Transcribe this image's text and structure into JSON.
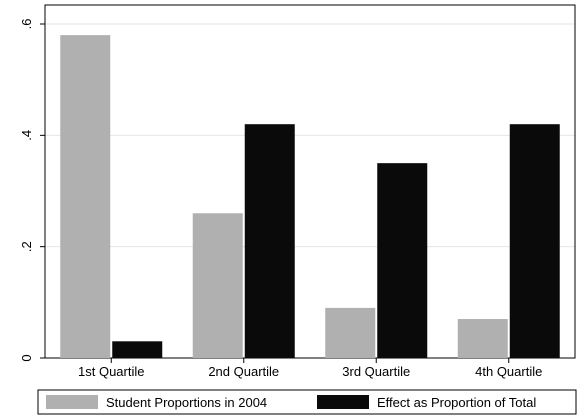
{
  "chart_data": {
    "type": "bar",
    "categories": [
      "1st Quartile",
      "2nd Quartile",
      "3rd Quartile",
      "4th Quartile"
    ],
    "series": [
      {
        "name": "Student Proportions in 2004",
        "values": [
          0.58,
          0.26,
          0.09,
          0.07
        ],
        "color": "#b0b0b0"
      },
      {
        "name": "Effect as Proportion of Total",
        "values": [
          0.03,
          0.42,
          0.35,
          0.42
        ],
        "color": "#0a0a0a"
      }
    ],
    "ylim": [
      0,
      0.6
    ],
    "yticks": [
      0,
      0.2,
      0.4,
      0.6
    ],
    "ytick_labels": [
      "0",
      ".2",
      ".4",
      ".6"
    ],
    "grid": true,
    "legend_position": "bottom",
    "title": "",
    "xlabel": "",
    "ylabel": ""
  }
}
